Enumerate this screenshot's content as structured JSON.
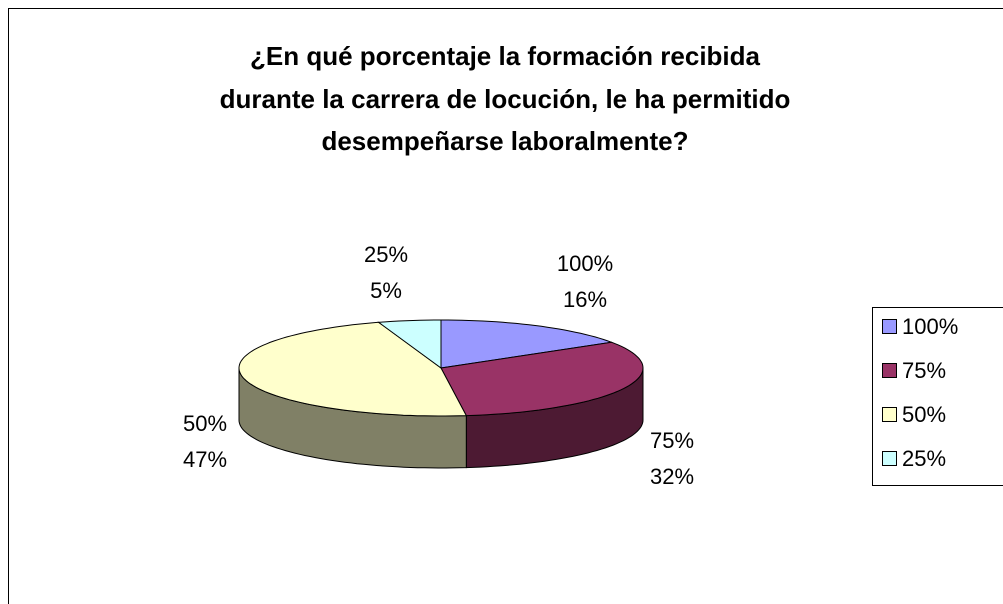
{
  "chart_data": {
    "type": "pie",
    "title": [
      "¿En qué porcentaje la formación recibida",
      "durante la carrera de locución, le ha permitido",
      "desempeñarse laboralmente?"
    ],
    "categories": [
      "100%",
      "75%",
      "50%",
      "25%"
    ],
    "values": [
      16,
      32,
      47,
      5
    ],
    "value_labels": [
      "16%",
      "32%",
      "47%",
      "5%"
    ],
    "colors": [
      "#9999ff",
      "#993366",
      "#ffffcc",
      "#ccffff"
    ],
    "legend": "right",
    "three_d": true
  }
}
